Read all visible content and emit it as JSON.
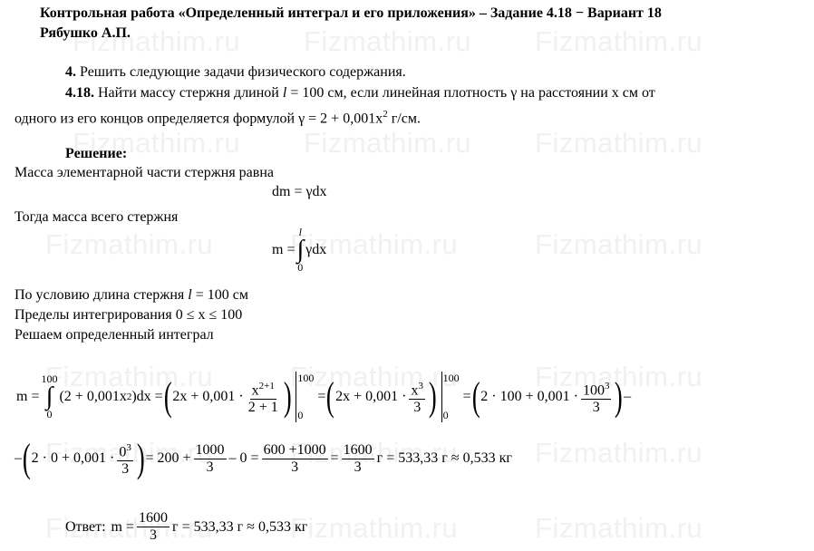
{
  "watermark": "Fizmathim.ru",
  "header": {
    "title": "Контрольная работа «Определенный интеграл и его приложения» – Задание 4.18 − Вариант 18",
    "author": "Рябушко А.П."
  },
  "task": {
    "num4": "4.",
    "text4": "Решить следующие задачи физического содержания.",
    "num418": "4.18.",
    "line1a": "Найти массу стержня длиной ",
    "l": "l",
    "line1b": " = 100 см, если линейная плотность γ на расстоянии x см от",
    "line2a": "одного из его концов определяется формулой γ = 2 + 0,001x",
    "line2sup": "2",
    "line2b": " г/см."
  },
  "solution": {
    "heading": "Решение:",
    "p1": "Масса элементарной части стержня равна",
    "eq1": "dm = γdx",
    "p2": "Тогда масса всего стержня",
    "eq2_lhs": "m =",
    "eq2_upper": "l",
    "eq2_lower": "0",
    "eq2_body": "γdx",
    "p3a": "По условию длина стержня ",
    "p3l": "l",
    "p3b": " = 100 см",
    "p4": "Пределы интегрирования 0 ≤ x ≤ 100",
    "p5": "Решаем определенный интеграл",
    "big1": {
      "lhs": "m =",
      "up": "100",
      "lo": "0",
      "body1": "(2 + 0,001x",
      "sq": "2",
      "body2": ")dx =",
      "t1": "2x + 0,001 ·",
      "f1n": "x",
      "f1ns": "2+1",
      "f1d": "2 + 1",
      "eq": "=",
      "t2": "2x + 0,001 ·",
      "f2n": "x",
      "f2ns": "3",
      "f2d": "3",
      "t3": "2 · 100 + 0,001 ·",
      "f3n": "100",
      "f3ns": "3",
      "f3d": "3",
      "minus": "–"
    },
    "big2": {
      "minus": "–",
      "t1": "2 · 0 + 0,001 ·",
      "f1n": "0",
      "f1ns": "3",
      "f1d": "3",
      "a": "= 200 +",
      "f2n": "1000",
      "f2d": "3",
      "b": "– 0 =",
      "f3n": "600 +1000",
      "f3d": "3",
      "c": "=",
      "f4n": "1600",
      "f4d": "3",
      "d": "г = 533,33 г ≈ 0,533 кг"
    },
    "answer": {
      "label": "Ответ:",
      "lhs": "m =",
      "fn": "1600",
      "fd": "3",
      "rest": "г = 533,33 г ≈ 0,533 кг"
    }
  }
}
